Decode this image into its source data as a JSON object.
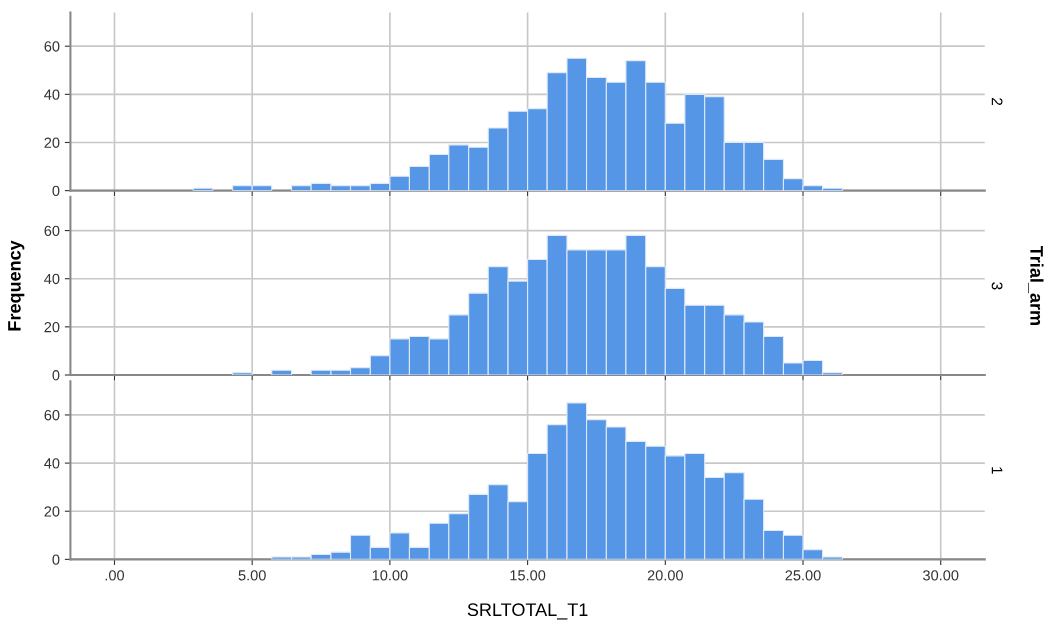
{
  "chart_data": [
    {
      "type": "histogram",
      "bins": [
        2.86,
        3.57,
        4.29,
        5.0,
        5.71,
        6.43,
        7.14,
        7.86,
        8.57,
        9.29,
        10.0,
        10.71,
        11.43,
        12.14,
        12.86,
        13.57,
        14.29,
        15.0,
        15.71,
        16.43,
        17.14,
        17.86,
        18.57,
        19.29,
        20.0,
        20.71,
        21.43,
        22.14,
        22.86,
        23.57,
        24.29,
        25.0,
        25.71,
        26.43
      ],
      "values": [
        1,
        0,
        2,
        2,
        0,
        2,
        3,
        2,
        2,
        3,
        6,
        10,
        15,
        19,
        18,
        26,
        33,
        34,
        49,
        55,
        47,
        45,
        54,
        45,
        28,
        40,
        39,
        20,
        20,
        13,
        5,
        2,
        1
      ],
      "color": "#5596e6",
      "xlim": [
        -1.6,
        31.6
      ],
      "xticks": [
        0,
        5,
        10,
        15,
        20,
        25,
        30
      ],
      "ylim": [
        0,
        74
      ],
      "yticks": [
        0,
        20,
        40,
        60
      ],
      "grid": true,
      "tick_labels": "y",
      "annotations": [
        "2"
      ]
    },
    {
      "type": "histogram",
      "bins": [
        2.86,
        3.57,
        4.29,
        5.0,
        5.71,
        6.43,
        7.14,
        7.86,
        8.57,
        9.29,
        10.0,
        10.71,
        11.43,
        12.14,
        12.86,
        13.57,
        14.29,
        15.0,
        15.71,
        16.43,
        17.14,
        17.86,
        18.57,
        19.29,
        20.0,
        20.71,
        21.43,
        22.14,
        22.86,
        23.57,
        24.29,
        25.0,
        25.71,
        26.43
      ],
      "values": [
        0,
        0,
        1,
        0,
        2,
        0,
        2,
        2,
        3,
        8,
        15,
        16,
        15,
        25,
        34,
        45,
        39,
        48,
        58,
        52,
        52,
        52,
        58,
        45,
        36,
        29,
        29,
        25,
        22,
        16,
        5,
        6,
        1
      ],
      "color": "#5596e6",
      "xlim": [
        -1.6,
        31.6
      ],
      "xticks": [
        0,
        5,
        10,
        15,
        20,
        25,
        30
      ],
      "ylim": [
        0,
        74
      ],
      "yticks": [
        0,
        20,
        40,
        60
      ],
      "grid": true,
      "tick_labels": "y",
      "ylabel": "Frequency",
      "y2label": "Trial_arm",
      "annotations": [
        "3"
      ]
    },
    {
      "type": "histogram",
      "bins": [
        2.86,
        3.57,
        4.29,
        5.0,
        5.71,
        6.43,
        7.14,
        7.86,
        8.57,
        9.29,
        10.0,
        10.71,
        11.43,
        12.14,
        12.86,
        13.57,
        14.29,
        15.0,
        15.71,
        16.43,
        17.14,
        17.86,
        18.57,
        19.29,
        20.0,
        20.71,
        21.43,
        22.14,
        22.86,
        23.57,
        24.29,
        25.0,
        25.71,
        26.43
      ],
      "values": [
        0,
        0,
        0,
        0,
        1,
        1,
        2,
        3,
        10,
        5,
        11,
        5,
        15,
        19,
        27,
        31,
        24,
        44,
        56,
        65,
        58,
        55,
        49,
        47,
        43,
        44,
        34,
        36,
        25,
        12,
        10,
        4,
        1
      ],
      "color": "#5596e6",
      "xlim": [
        -1.6,
        31.6
      ],
      "xticks": [
        {
          "value": 0,
          "label": ".00"
        },
        {
          "value": 5,
          "label": "5.00"
        },
        {
          "value": 10,
          "label": "10.00"
        },
        {
          "value": 15,
          "label": "15.00"
        },
        {
          "value": 20,
          "label": "20.00"
        },
        {
          "value": 25,
          "label": "25.00"
        },
        {
          "value": 30,
          "label": "30.00"
        }
      ],
      "ylim": [
        0,
        74
      ],
      "yticks": [
        0,
        20,
        40,
        60
      ],
      "grid": true,
      "xlabel": "SRLTOTAL_T1",
      "annotations": [
        "1"
      ]
    }
  ]
}
